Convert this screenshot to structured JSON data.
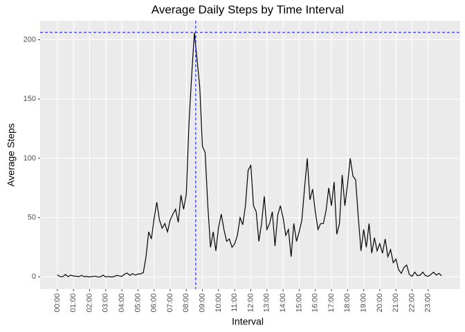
{
  "chart_data": {
    "type": "line",
    "title": "Average Daily Steps by Time Interval",
    "x_label": "Interval",
    "y_label": "Average Steps",
    "x": [
      0,
      10,
      20,
      30,
      40,
      50,
      60,
      70,
      80,
      90,
      100,
      110,
      120,
      130,
      140,
      150,
      160,
      170,
      180,
      190,
      200,
      210,
      220,
      230,
      240,
      250,
      260,
      270,
      280,
      290,
      300,
      310,
      320,
      330,
      340,
      350,
      360,
      370,
      380,
      390,
      400,
      410,
      420,
      430,
      440,
      450,
      460,
      470,
      480,
      490,
      500,
      510,
      520,
      530,
      540,
      550,
      560,
      570,
      580,
      590,
      600,
      610,
      620,
      630,
      640,
      650,
      660,
      670,
      680,
      690,
      700,
      710,
      720,
      730,
      740,
      750,
      760,
      770,
      780,
      790,
      800,
      810,
      820,
      830,
      840,
      850,
      860,
      870,
      880,
      890,
      900,
      910,
      920,
      930,
      940,
      950,
      960,
      970,
      980,
      990,
      1000,
      1010,
      1020,
      1030,
      1040,
      1050,
      1060,
      1070,
      1080,
      1090,
      1100,
      1110,
      1120,
      1130,
      1140,
      1150,
      1160,
      1170,
      1180,
      1190,
      1200,
      1210,
      1220,
      1230,
      1240,
      1250,
      1260,
      1270,
      1280,
      1290,
      1300,
      1310,
      1320,
      1330,
      1340,
      1350,
      1360,
      1370,
      1380,
      1390,
      1400,
      1410,
      1420,
      1430
    ],
    "series": [
      {
        "color": "#000000",
        "values": [
          1.7,
          0.3,
          0.1,
          2.1,
          0.2,
          1.5,
          0.7,
          0.6,
          0.2,
          1.3,
          0.2,
          0.4,
          0,
          0.3,
          0.6,
          0.1,
          0,
          1.5,
          0,
          0.3,
          0,
          0.2,
          1.2,
          0.9,
          0.5,
          2.3,
          3.2,
          1.2,
          2.8,
          1.5,
          2.4,
          2.6,
          3.6,
          17,
          38,
          32,
          49,
          63,
          48,
          41,
          45,
          38,
          48,
          53,
          57,
          46,
          69,
          57,
          70,
          130,
          170,
          206,
          183,
          160,
          110,
          105,
          60,
          25,
          38,
          22,
          42,
          53,
          40,
          30,
          32,
          25,
          28,
          35,
          50,
          44,
          60,
          90,
          94,
          60,
          55,
          30,
          45,
          68,
          40,
          45,
          55,
          26,
          52,
          60,
          50,
          35,
          40,
          17,
          45,
          30,
          38,
          48,
          75,
          100,
          65,
          74,
          55,
          40,
          45,
          45,
          56,
          75,
          60,
          80,
          36,
          45,
          86,
          60,
          78,
          100,
          85,
          82,
          50,
          22,
          40,
          25,
          45,
          20,
          33,
          22,
          28,
          20,
          32,
          17,
          23,
          12,
          15,
          6,
          3,
          8,
          10,
          2,
          0.5,
          4,
          1,
          1.5,
          4,
          1,
          0.5,
          2,
          4,
          1.5,
          3,
          1
        ]
      }
    ],
    "xlim": [
      -64,
      1499
    ],
    "ylim": [
      -10.3,
      216
    ],
    "xticks": [
      {
        "value": 0,
        "label": "00:00"
      },
      {
        "value": 60,
        "label": "01:00"
      },
      {
        "value": 120,
        "label": "02:00"
      },
      {
        "value": 180,
        "label": "03:00"
      },
      {
        "value": 240,
        "label": "04:00"
      },
      {
        "value": 300,
        "label": "05:00"
      },
      {
        "value": 360,
        "label": "06:00"
      },
      {
        "value": 420,
        "label": "07:00"
      },
      {
        "value": 480,
        "label": "08:00"
      },
      {
        "value": 540,
        "label": "09:00"
      },
      {
        "value": 600,
        "label": "10:00"
      },
      {
        "value": 660,
        "label": "11:00"
      },
      {
        "value": 720,
        "label": "12:00"
      },
      {
        "value": 780,
        "label": "13:00"
      },
      {
        "value": 840,
        "label": "14:00"
      },
      {
        "value": 900,
        "label": "15:00"
      },
      {
        "value": 960,
        "label": "16:00"
      },
      {
        "value": 1020,
        "label": "17:00"
      },
      {
        "value": 1080,
        "label": "18:00"
      },
      {
        "value": 1140,
        "label": "19:00"
      },
      {
        "value": 1200,
        "label": "20:00"
      },
      {
        "value": 1260,
        "label": "21:00"
      },
      {
        "value": 1320,
        "label": "22:00"
      },
      {
        "value": 1380,
        "label": "23:00"
      }
    ],
    "yticks": [
      0,
      50,
      100,
      150,
      200
    ],
    "vline_x": 515,
    "hline_y": 206.17,
    "ref_color": "#0000ff",
    "grid": true
  }
}
